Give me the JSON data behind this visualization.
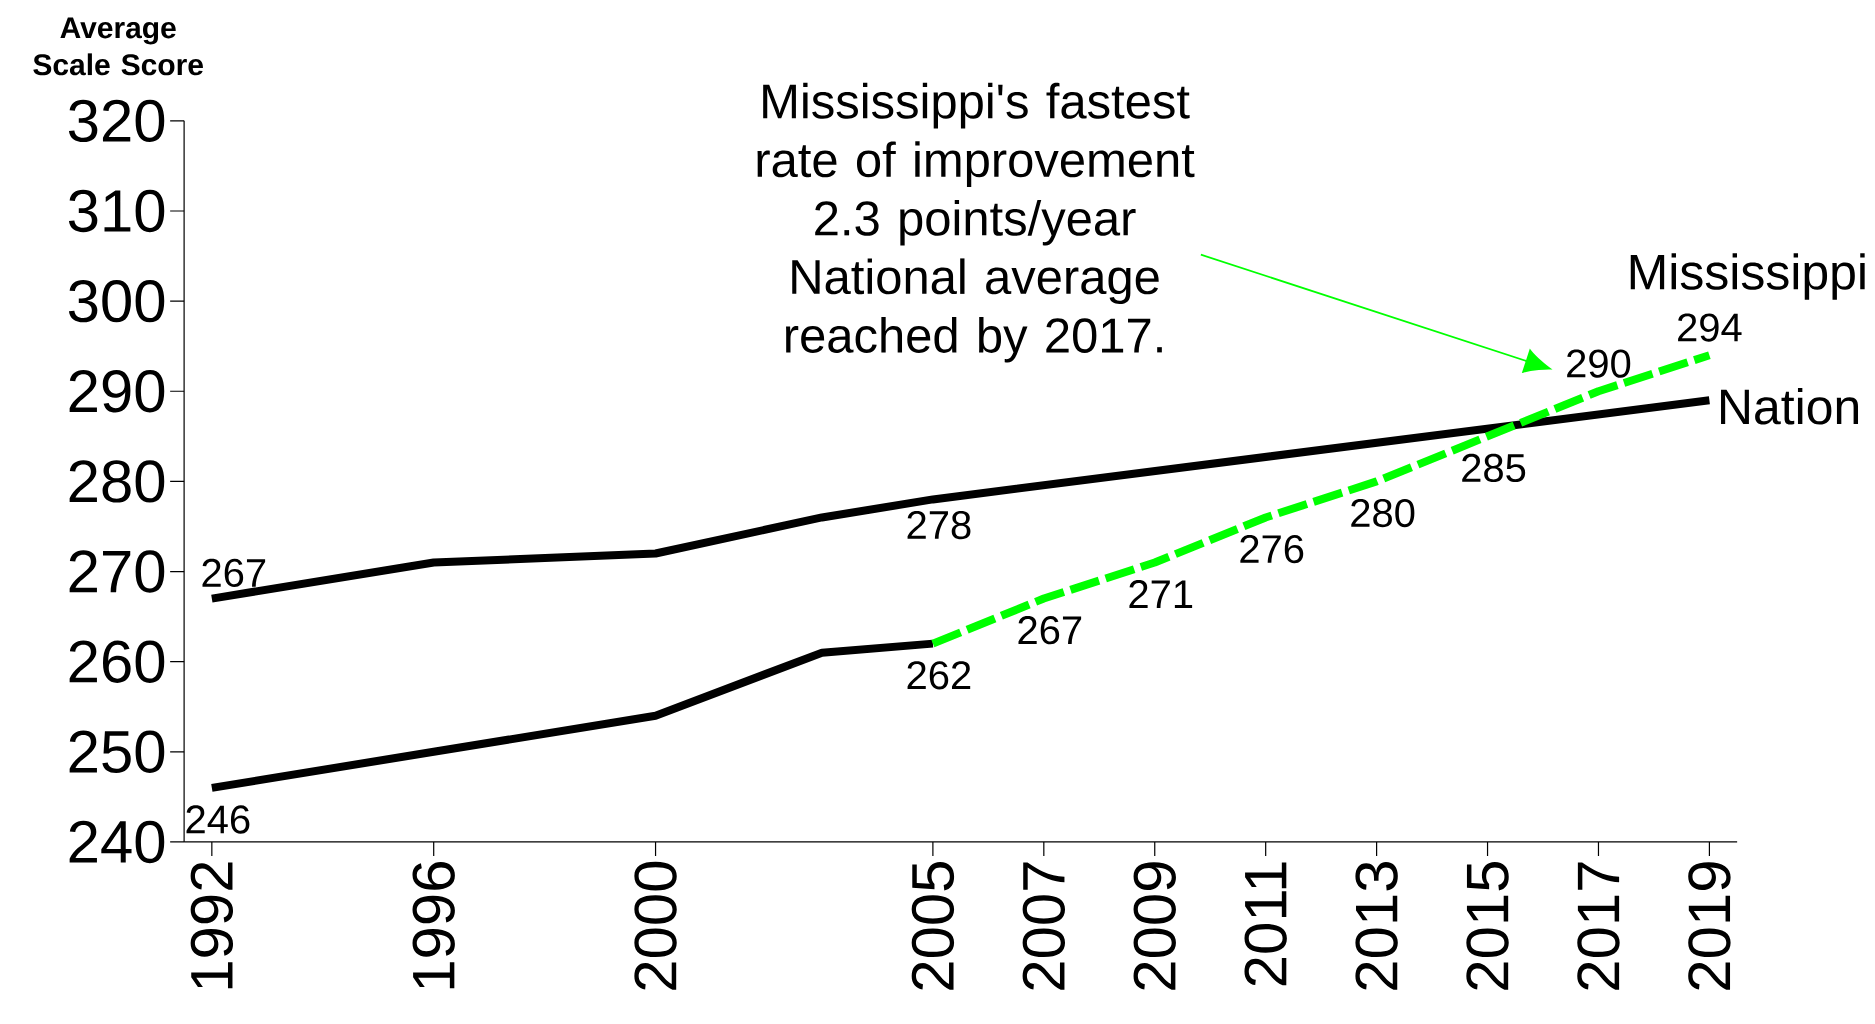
{
  "chart_data": {
    "type": "line",
    "ylabel": "Average Scale Score",
    "annotations": [
      "Mississippi's fastest rate of improvement 2.3 points/year National average reached by 2017."
    ],
    "xlim": [
      1991.5,
      2019.5
    ],
    "xticks": [
      1992,
      1996,
      2000,
      2005,
      2007,
      2009,
      2011,
      2013,
      2015,
      2017,
      2019
    ],
    "ylim": [
      240,
      320
    ],
    "yticks": [
      240,
      250,
      260,
      270,
      280,
      290,
      300,
      310,
      320
    ],
    "series": [
      {
        "name": "Nation",
        "color": "#000000",
        "line_style": "solid",
        "x": [
          1992,
          1996,
          2000,
          2003,
          2005,
          2019
        ],
        "values": [
          267,
          271,
          272,
          276,
          278,
          289
        ],
        "value_labels": [
          "267",
          null,
          null,
          null,
          "278",
          null
        ]
      },
      {
        "color": "#000000",
        "line_style": "solid",
        "x": [
          1992,
          1996,
          2000,
          2003,
          2005
        ],
        "values": [
          246,
          250,
          254,
          261,
          262
        ],
        "value_labels": [
          "246",
          null,
          null,
          null,
          null
        ]
      },
      {
        "name": "Mississippi",
        "color": "#00ff00",
        "line_style": "dashed",
        "x": [
          2005,
          2007,
          2009,
          2011,
          2013,
          2015,
          2017,
          2019
        ],
        "values": [
          262,
          267,
          271,
          276,
          280,
          285,
          290,
          294
        ],
        "value_labels": [
          "262",
          "267",
          "271",
          "276",
          "280",
          "285",
          "290",
          "294"
        ]
      }
    ]
  }
}
